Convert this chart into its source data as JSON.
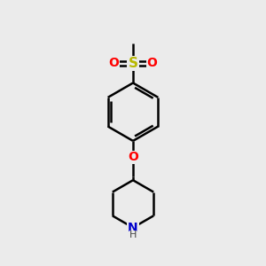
{
  "background_color": "#ebebeb",
  "bond_color": "#000000",
  "atom_colors": {
    "O": "#ff0000",
    "S": "#b8b800",
    "N": "#0000cc",
    "H": "#444444"
  },
  "bond_width": 1.8,
  "figsize": [
    3.0,
    3.0
  ],
  "dpi": 100,
  "xlim": [
    0,
    10
  ],
  "ylim": [
    0,
    10
  ]
}
